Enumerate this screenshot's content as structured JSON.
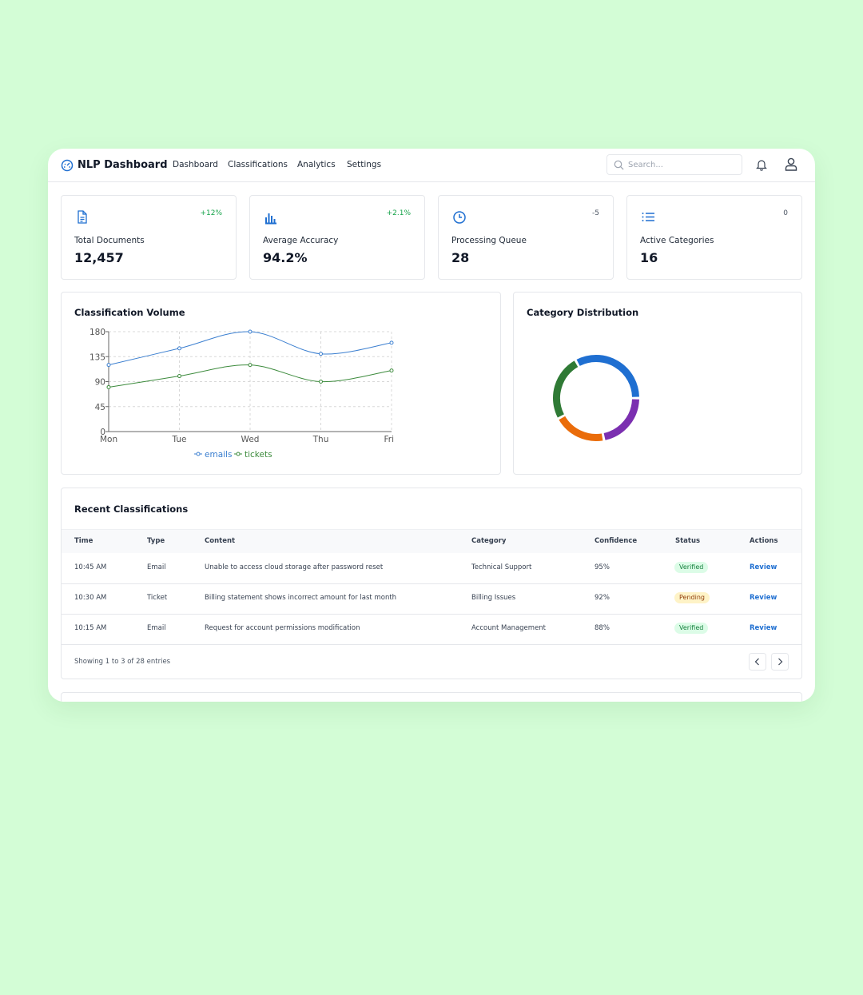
{
  "header": {
    "title": "NLP Dashboard",
    "nav": [
      "Dashboard",
      "Classifications",
      "Analytics",
      "Settings"
    ],
    "search_placeholder": "Search..."
  },
  "stats": [
    {
      "label": "Total Documents",
      "value": "12,457",
      "change": "+12%",
      "change_color": "#16a34a"
    },
    {
      "label": "Average Accuracy",
      "value": "94.2%",
      "change": "+2.1%",
      "change_color": "#16a34a"
    },
    {
      "label": "Processing Queue",
      "value": "28",
      "change": "-5",
      "change_color": "#4b5563"
    },
    {
      "label": "Active Categories",
      "value": "16",
      "change": "0",
      "change_color": "#4b5563"
    }
  ],
  "chart_data": [
    {
      "type": "line",
      "title": "Classification Volume",
      "categories": [
        "Mon",
        "Tue",
        "Wed",
        "Thu",
        "Fri"
      ],
      "series": [
        {
          "name": "emails",
          "color": "#3b7fd0",
          "values": [
            120,
            150,
            180,
            140,
            160
          ]
        },
        {
          "name": "tickets",
          "color": "#3d8b3d",
          "values": [
            80,
            100,
            120,
            90,
            110
          ]
        }
      ],
      "ylim": [
        0,
        180
      ],
      "yticks": [
        0,
        45,
        90,
        135,
        180
      ],
      "grid": true
    },
    {
      "type": "pie",
      "title": "Category Distribution",
      "categories": [
        null,
        null,
        null,
        null
      ],
      "values": [
        33,
        22,
        20,
        25
      ],
      "colors": [
        "#1f6fd1",
        "#7b2fb0",
        "#ea6c0a",
        "#2f7a35"
      ]
    }
  ],
  "table": {
    "title": "Recent Classifications",
    "columns": [
      "Time",
      "Type",
      "Content",
      "Category",
      "Confidence",
      "Status",
      "Actions"
    ],
    "rows": [
      {
        "time": "10:45 AM",
        "type": "Email",
        "content": "Unable to access cloud storage after password reset",
        "category": "Technical Support",
        "confidence": "95%",
        "status": "Verified",
        "status_color": "green",
        "action": "Review"
      },
      {
        "time": "10:30 AM",
        "type": "Ticket",
        "content": "Billing statement shows incorrect amount for last month",
        "category": "Billing Issues",
        "confidence": "92%",
        "status": "Pending",
        "status_color": "yellow",
        "action": "Review"
      },
      {
        "time": "10:15 AM",
        "type": "Email",
        "content": "Request for account permissions modification",
        "category": "Account Management",
        "confidence": "88%",
        "status": "Verified",
        "status_color": "green",
        "action": "Review"
      }
    ],
    "footer": "Showing 1 to 3 of 28 entries"
  }
}
